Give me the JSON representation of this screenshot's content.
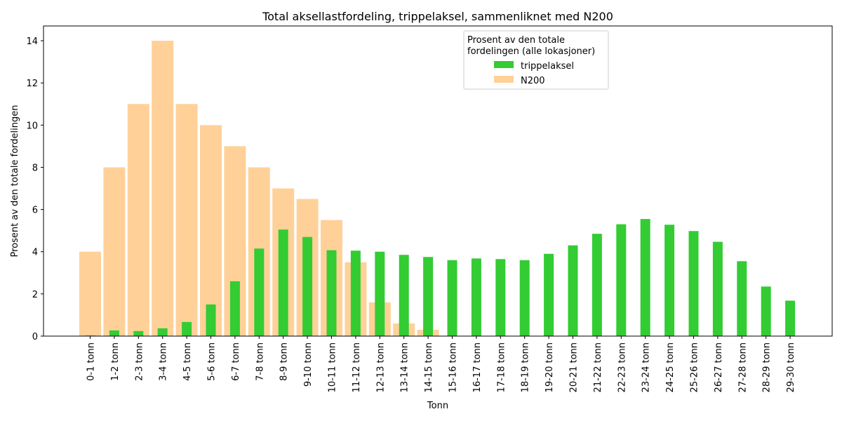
{
  "chart_data": {
    "type": "bar",
    "title": "Total aksellastfordeling, trippelaksel, sammenliknet med N200",
    "xlabel": "Tonn",
    "ylabel": "Prosent av den totale fordelingen",
    "ylim": [
      0,
      14.7
    ],
    "yticks": [
      0,
      2,
      4,
      6,
      8,
      10,
      12,
      14
    ],
    "grid": false,
    "legend": {
      "title_lines": [
        "Prosent av den totale",
        "fordelingen (alle lokasjoner)"
      ],
      "placement": "top-right"
    },
    "categories": [
      "0-1 tonn",
      "1-2 tonn",
      "2-3 tonn",
      "3-4 tonn",
      "4-5 tonn",
      "5-6 tonn",
      "6-7 tonn",
      "7-8 tonn",
      "8-9 tonn",
      "9-10 tonn",
      "10-11 tonn",
      "11-12 tonn",
      "12-13 tonn",
      "13-14 tonn",
      "14-15 tonn",
      "15-16 tonn",
      "16-17 tonn",
      "17-18 tonn",
      "18-19 tonn",
      "19-20 tonn",
      "20-21 tonn",
      "21-22 tonn",
      "22-23 tonn",
      "23-24 tonn",
      "24-25 tonn",
      "25-26 tonn",
      "26-27 tonn",
      "27-28 tonn",
      "28-29 tonn",
      "29-30 tonn"
    ],
    "series": [
      {
        "name": "N200",
        "color": "#ffd199",
        "values": [
          4.0,
          8.0,
          11.0,
          14.0,
          11.0,
          10.0,
          9.0,
          8.0,
          7.0,
          6.5,
          5.5,
          3.5,
          1.6,
          0.6,
          0.3,
          0,
          0,
          0,
          0,
          0,
          0,
          0,
          0,
          0,
          0,
          0,
          0,
          0,
          0,
          0
        ]
      },
      {
        "name": "trippelaksel",
        "color": "#33cc33",
        "values": [
          0.03,
          0.27,
          0.24,
          0.37,
          0.67,
          1.5,
          2.6,
          4.15,
          5.05,
          4.7,
          4.07,
          4.05,
          4.0,
          3.85,
          3.75,
          3.6,
          3.68,
          3.65,
          3.6,
          3.9,
          4.3,
          4.85,
          5.3,
          5.55,
          5.28,
          4.98,
          4.47,
          3.55,
          2.35,
          1.68
        ]
      }
    ]
  }
}
